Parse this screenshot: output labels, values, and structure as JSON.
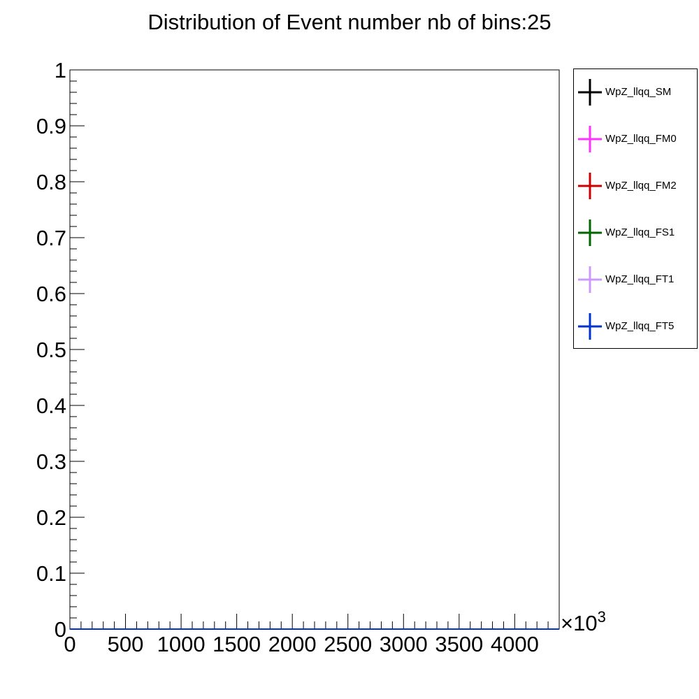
{
  "chart_data": {
    "type": "line",
    "title": "Distribution of Event number nb of bins:25",
    "xlabel": "",
    "ylabel": "",
    "x_multiplier_label": "×10",
    "x_multiplier_exponent": "3",
    "xlim": [
      0,
      4400
    ],
    "ylim": [
      0,
      1
    ],
    "x_ticks": [
      "0",
      "500",
      "1000",
      "1500",
      "2000",
      "2500",
      "3000",
      "3500",
      "4000"
    ],
    "y_ticks": [
      "0",
      "0.1",
      "0.2",
      "0.3",
      "0.4",
      "0.5",
      "0.6",
      "0.7",
      "0.8",
      "0.9",
      "1"
    ],
    "x_tick_values": [
      0,
      500,
      1000,
      1500,
      2000,
      2500,
      3000,
      3500,
      4000
    ],
    "y_tick_values": [
      0,
      0.1,
      0.2,
      0.3,
      0.4,
      0.5,
      0.6,
      0.7,
      0.8,
      0.9,
      1
    ],
    "grid": false,
    "legend_position": "right",
    "series": [
      {
        "name": "WpZ_llqq_SM",
        "color": "#000000",
        "x": [
          0,
          4400
        ],
        "y": [
          0,
          0
        ]
      },
      {
        "name": "WpZ_llqq_FM0",
        "color": "#ff33ff",
        "x": [
          0,
          4400
        ],
        "y": [
          0,
          0
        ]
      },
      {
        "name": "WpZ_llqq_FM2",
        "color": "#cc0000",
        "x": [
          0,
          4400
        ],
        "y": [
          0,
          0
        ]
      },
      {
        "name": "WpZ_llqq_FS1",
        "color": "#006600",
        "x": [
          0,
          4400
        ],
        "y": [
          0,
          0
        ]
      },
      {
        "name": "WpZ_llqq_FT1",
        "color": "#cc99ff",
        "x": [
          0,
          4400
        ],
        "y": [
          0,
          0
        ]
      },
      {
        "name": "WpZ_llqq_FT5",
        "color": "#0033cc",
        "x": [
          0,
          4400
        ],
        "y": [
          0,
          0
        ]
      }
    ]
  }
}
